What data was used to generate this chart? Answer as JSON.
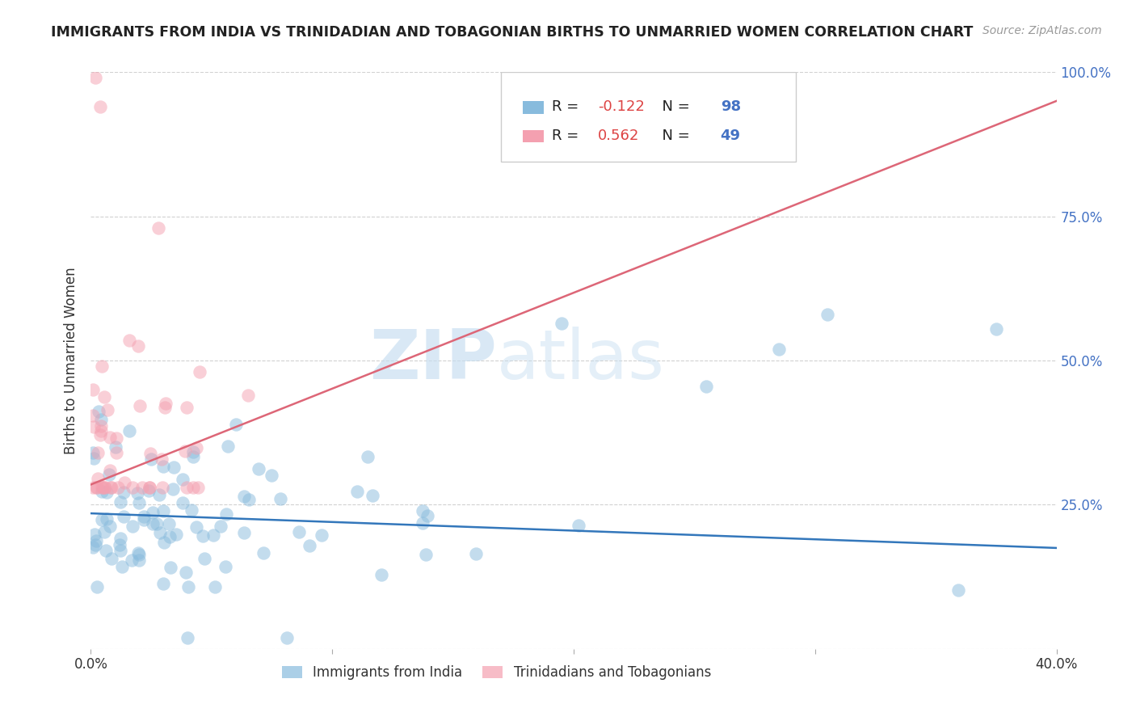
{
  "title": "IMMIGRANTS FROM INDIA VS TRINIDADIAN AND TOBAGONIAN BIRTHS TO UNMARRIED WOMEN CORRELATION CHART",
  "source": "Source: ZipAtlas.com",
  "ylabel": "Births to Unmarried Women",
  "xlim": [
    0.0,
    0.4
  ],
  "ylim": [
    0.0,
    1.0
  ],
  "legend_label1": "Immigrants from India",
  "legend_label2": "Trinidadians and Tobagonians",
  "R1": -0.122,
  "N1": 98,
  "R2": 0.562,
  "N2": 49,
  "blue_color": "#88bbdd",
  "pink_color": "#f4a0b0",
  "blue_line_color": "#3377bb",
  "pink_line_color": "#dd6677",
  "watermark_zip": "ZIP",
  "watermark_atlas": "atlas",
  "background_color": "#ffffff",
  "grid_color": "#cccccc",
  "blue_line_x0": 0.0,
  "blue_line_y0": 0.235,
  "blue_line_x1": 0.4,
  "blue_line_y1": 0.175,
  "pink_line_x0": 0.0,
  "pink_line_y0": 0.285,
  "pink_line_x1": 0.4,
  "pink_line_y1": 0.95
}
